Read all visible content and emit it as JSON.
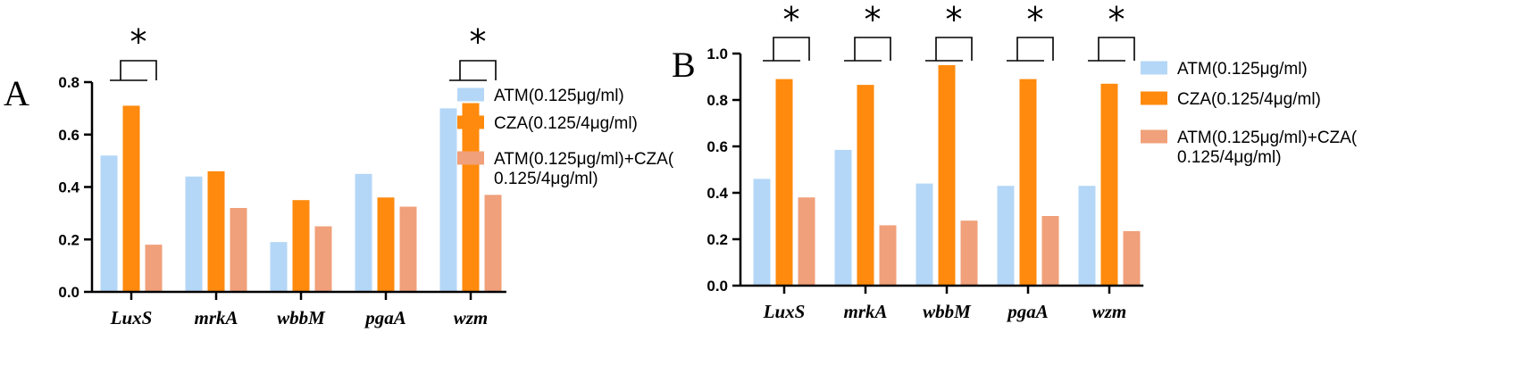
{
  "colors": {
    "atm": "#b4d7f7",
    "cza": "#ff8a0d",
    "combo": "#f0a07a"
  },
  "chart_data": [
    {
      "type": "bar",
      "panel": "A",
      "categories": [
        "LuxS",
        "mrkA",
        "wbbM",
        "pgaA",
        "wzm"
      ],
      "series": [
        {
          "name": "ATM(0.125μg/ml)",
          "values": [
            0.52,
            0.44,
            0.19,
            0.45,
            0.7
          ]
        },
        {
          "name": "CZA(0.125/4μg/ml)",
          "values": [
            0.71,
            0.46,
            0.35,
            0.36,
            0.72
          ]
        },
        {
          "name": "ATM(0.125μg/ml)+CZA(0.125/4μg/ml)",
          "values": [
            0.18,
            0.32,
            0.25,
            0.325,
            0.37
          ]
        }
      ],
      "legend_lines": [
        [
          "ATM(0.125μg/ml)"
        ],
        [
          "CZA(0.125/4μg/ml)"
        ],
        [
          "ATM(0.125μg/ml)+CZA(",
          "0.125/4μg/ml)"
        ]
      ],
      "yticks": [
        "0.0",
        "0.2",
        "0.4",
        "0.6",
        "0.8"
      ],
      "ylim": [
        0,
        0.8
      ],
      "significance": [
        {
          "category": "LuxS",
          "mark": "*"
        },
        {
          "category": "wzm",
          "mark": "*"
        }
      ],
      "legend_position": "right"
    },
    {
      "type": "bar",
      "panel": "B",
      "categories": [
        "LuxS",
        "mrkA",
        "wbbM",
        "pgaA",
        "wzm"
      ],
      "series": [
        {
          "name": "ATM(0.125μg/ml)",
          "values": [
            0.46,
            0.585,
            0.44,
            0.43,
            0.43
          ]
        },
        {
          "name": "CZA(0.125/4μg/ml)",
          "values": [
            0.89,
            0.865,
            0.95,
            0.89,
            0.87
          ]
        },
        {
          "name": "ATM(0.125μg/ml)+CZA(0.125/4μg/ml)",
          "values": [
            0.38,
            0.26,
            0.28,
            0.3,
            0.235
          ]
        }
      ],
      "legend_lines": [
        [
          "ATM(0.125μg/ml)"
        ],
        [
          "CZA(0.125/4μg/ml)"
        ],
        [
          "ATM(0.125μg/ml)+CZA(",
          "0.125/4μg/ml)"
        ]
      ],
      "yticks": [
        "0.0",
        "0.2",
        "0.4",
        "0.6",
        "0.8",
        "1.0"
      ],
      "ylim": [
        0,
        1.0
      ],
      "significance": [
        {
          "category": "LuxS",
          "mark": "*"
        },
        {
          "category": "mrkA",
          "mark": "*"
        },
        {
          "category": "wbbM",
          "mark": "*"
        },
        {
          "category": "pgaA",
          "mark": "*"
        },
        {
          "category": "wzm",
          "mark": "*"
        }
      ],
      "legend_position": "right"
    }
  ]
}
